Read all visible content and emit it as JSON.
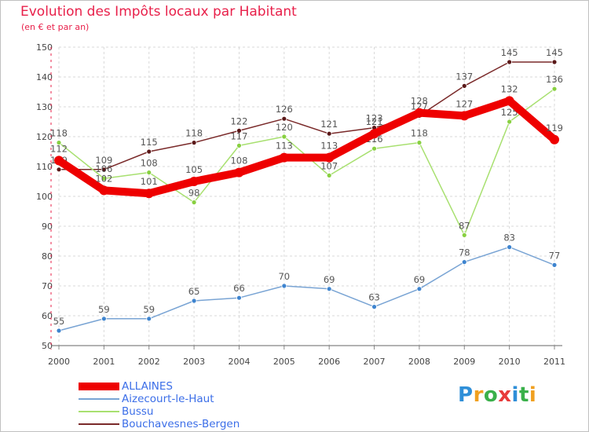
{
  "header": {
    "title": "Evolution des Impôts locaux par Habitant",
    "subtitle": "(en € et par an)"
  },
  "chart_data": {
    "type": "line",
    "title": "Evolution des Impôts locaux par Habitant",
    "subtitle": "(en € et par an)",
    "xlabel": "",
    "ylabel": "",
    "ylim": [
      50,
      150
    ],
    "yticks": [
      50,
      60,
      70,
      80,
      90,
      100,
      110,
      120,
      130,
      140,
      150
    ],
    "x": [
      "2000",
      "2001",
      "2002",
      "2003",
      "2004",
      "2005",
      "2006",
      "2007",
      "2008",
      "2009",
      "2010",
      "2011"
    ],
    "legend_position": "bottom-left",
    "series": [
      {
        "name": "Bouchavesnes-Bergen",
        "color": "#7a2a2a",
        "marker": "#5a1818",
        "thick": false,
        "values": [
          109,
          109,
          115,
          118,
          122,
          126,
          121,
          123,
          127,
          137,
          145,
          145
        ]
      },
      {
        "name": "Bussu",
        "color": "#a8e070",
        "marker": "#88d040",
        "thick": false,
        "values": [
          118,
          106,
          108,
          98,
          117,
          120,
          107,
          116,
          118,
          87,
          125,
          136
        ]
      },
      {
        "name": "Aizecourt-le-Haut",
        "color": "#79a4d4",
        "marker": "#3e84cf",
        "thick": false,
        "values": [
          55,
          59,
          59,
          65,
          66,
          70,
          69,
          63,
          69,
          78,
          83,
          77
        ]
      },
      {
        "name": "ALLAINES",
        "color": "#ee0000",
        "marker": "#ee0000",
        "thick": true,
        "values": [
          112,
          102,
          101,
          105,
          108,
          113,
          113,
          121,
          128,
          127,
          132,
          119
        ]
      }
    ],
    "legend_order": [
      "ALLAINES",
      "Aizecourt-le-Haut",
      "Bussu",
      "Bouchavesnes-Bergen"
    ]
  },
  "logo": {
    "text": "Proxiti",
    "letters": [
      "P",
      "r",
      "o",
      "x",
      "i",
      "t",
      "i"
    ]
  }
}
